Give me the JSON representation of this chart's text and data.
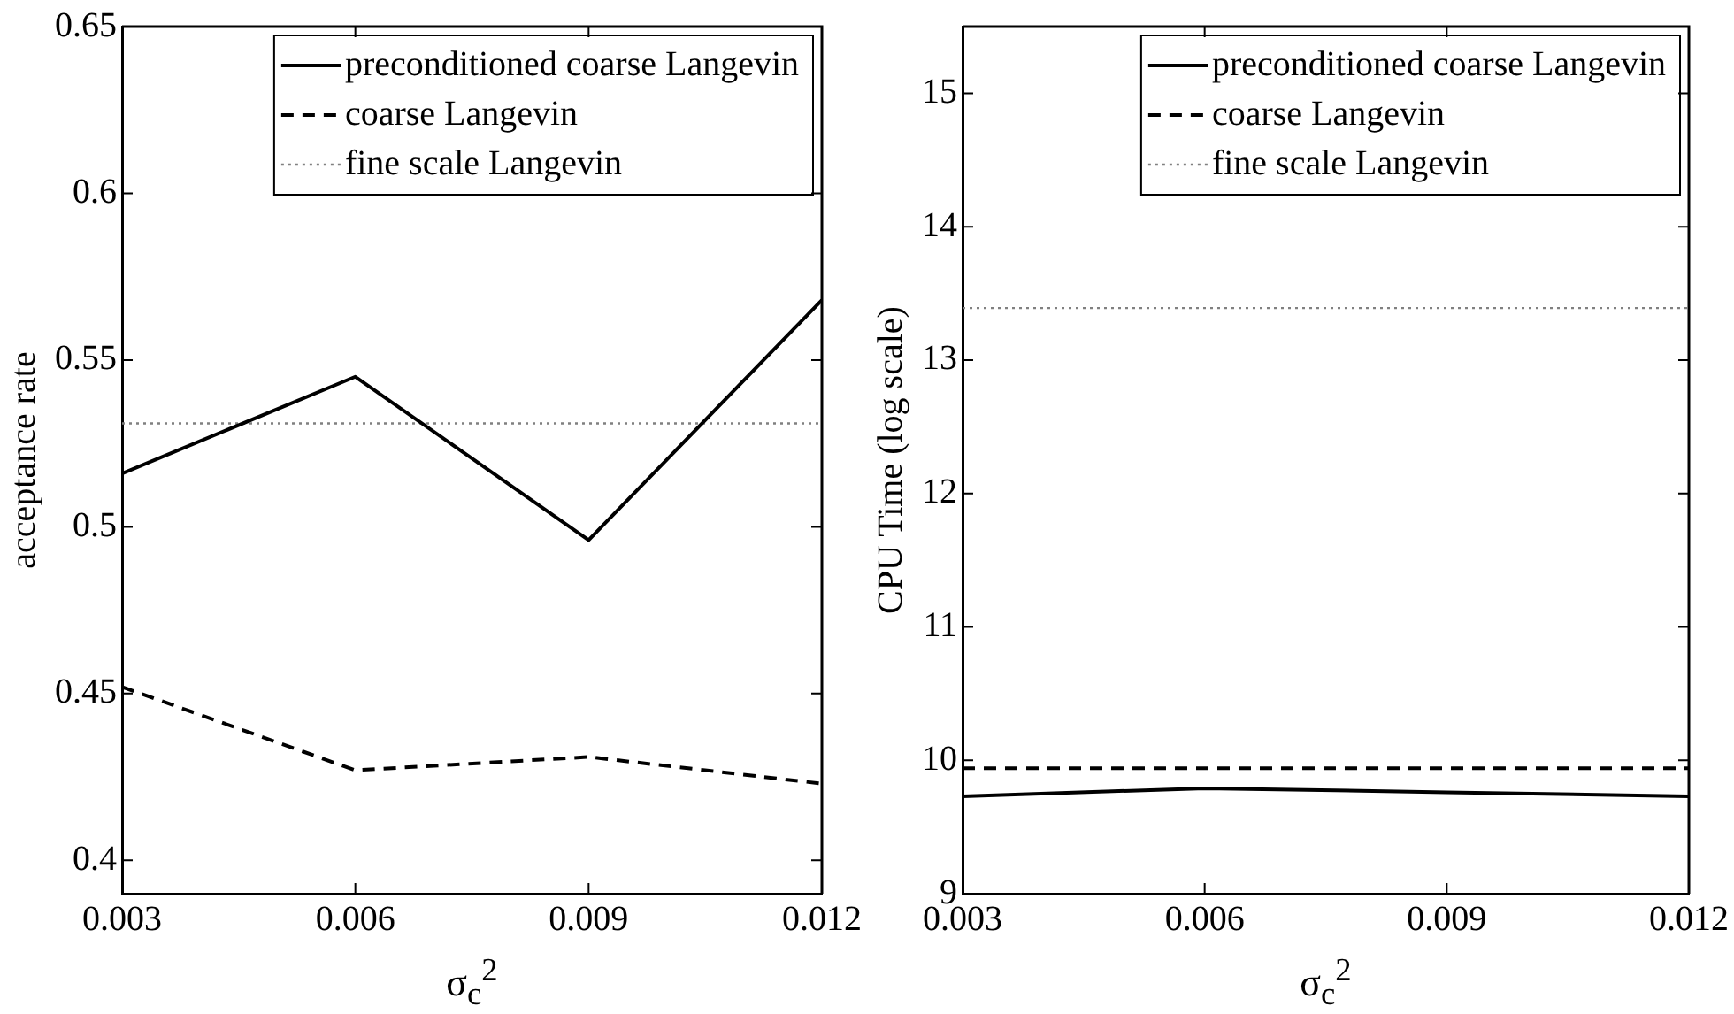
{
  "chart_data": [
    {
      "type": "line",
      "xlabel": "σ$_{c}$$^{2}$",
      "ylabel": "acceptance rate",
      "x": [
        0.003,
        0.006,
        0.009,
        0.012
      ],
      "xlim": [
        0.003,
        0.012
      ],
      "xticks": [
        0.003,
        0.006,
        0.009,
        0.012
      ],
      "ylim": [
        0.39,
        0.65
      ],
      "yticks": [
        0.4,
        0.45,
        0.5,
        0.55,
        0.6,
        0.65
      ],
      "legend": "top right",
      "grid": false,
      "series": [
        {
          "name": "preconditioned coarse Langevin",
          "color": "#000000",
          "line_style": "solid",
          "values": [
            0.516,
            0.545,
            0.496,
            0.568
          ]
        },
        {
          "name": "coarse Langevin",
          "color": "#000000",
          "line_style": "dashed",
          "values": [
            0.452,
            0.427,
            0.431,
            0.423
          ]
        },
        {
          "name": "fine scale Langevin",
          "color": "#808080",
          "line_style": "dotted",
          "values": [
            0.531,
            0.531,
            0.531,
            0.531
          ]
        }
      ]
    },
    {
      "type": "line",
      "xlabel": "σ$_{c}$$^{2}$",
      "ylabel": "CPU Time (log scale)",
      "x": [
        0.003,
        0.006,
        0.009,
        0.012
      ],
      "xlim": [
        0.003,
        0.012
      ],
      "xticks": [
        0.003,
        0.006,
        0.009,
        0.012
      ],
      "ylim": [
        9,
        15.5
      ],
      "yticks": [
        9,
        10,
        11,
        12,
        13,
        14,
        15
      ],
      "legend": "top right",
      "grid": false,
      "series": [
        {
          "name": "preconditioned coarse Langevin",
          "color": "#000000",
          "line_style": "solid",
          "values": [
            9.73,
            9.79,
            9.76,
            9.73
          ]
        },
        {
          "name": "coarse Langevin",
          "color": "#000000",
          "line_style": "dashed",
          "values": [
            9.94,
            9.94,
            9.94,
            9.94
          ]
        },
        {
          "name": "fine scale Langevin",
          "color": "#808080",
          "line_style": "dotted",
          "values": [
            13.39,
            13.39,
            13.39,
            13.39
          ]
        }
      ]
    }
  ]
}
